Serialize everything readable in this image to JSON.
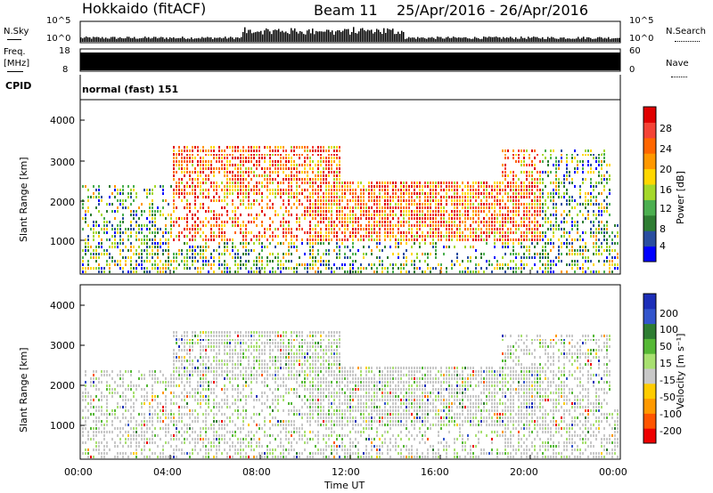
{
  "header": {
    "station": "Hokkaido (fitACF)",
    "beam": "Beam 11",
    "date_range": "25/Apr/2016 - 26/Apr/2016"
  },
  "noise_panel": {
    "left_label": "N.Sky",
    "right_label": "N.Search",
    "left_ticks": [
      "10^5",
      "10^0"
    ],
    "right_ticks": [
      "10^5",
      "10^0"
    ]
  },
  "freq_panel": {
    "left_label_1": "Freq.",
    "left_label_2": "[MHz]",
    "left_ticks": [
      "18",
      "8"
    ],
    "right_ticks": [
      "60",
      "0"
    ],
    "right_label": "Nave",
    "cpid_label": "CPID",
    "cpid_value": "normal (fast) 151"
  },
  "chart_data": [
    {
      "type": "heatmap",
      "name": "power",
      "ylabel": "Slant Range [km]",
      "ylim": [
        200,
        4500
      ],
      "yticks": [
        "4000",
        "3000",
        "2000",
        "1000"
      ],
      "colorbar_label": "Power [dB]",
      "colorbar_ticks": [
        "28",
        "24",
        "20",
        "16",
        "12",
        "8",
        "4"
      ],
      "colors": [
        "#0000ff",
        "#2a4ea0",
        "#2e7d32",
        "#4caf50",
        "#a4d82a",
        "#ffd700",
        "#ff9800",
        "#ff6600",
        "#f44336",
        "#e00000"
      ]
    },
    {
      "type": "heatmap",
      "name": "velocity",
      "ylabel": "Slant Range [km]",
      "ylim": [
        200,
        4500
      ],
      "yticks": [
        "4000",
        "3000",
        "2000",
        "1000"
      ],
      "colorbar_label": "Velocity [m s⁻¹]",
      "colorbar_ticks": [
        "200",
        "100",
        "50",
        "15",
        "-15",
        "-50",
        "-100",
        "-200"
      ],
      "colors": [
        "#1c2eb8",
        "#3355cc",
        "#2e7d32",
        "#55b835",
        "#a8e070",
        "#c8c8c8",
        "#ffcc00",
        "#ff9900",
        "#ff5500",
        "#ee0000"
      ]
    }
  ],
  "time_axis": {
    "xlabel": "Time UT",
    "ticks": [
      "00:00",
      "04:00",
      "08:00",
      "12:00",
      "16:00",
      "20:00",
      "00:00"
    ]
  }
}
